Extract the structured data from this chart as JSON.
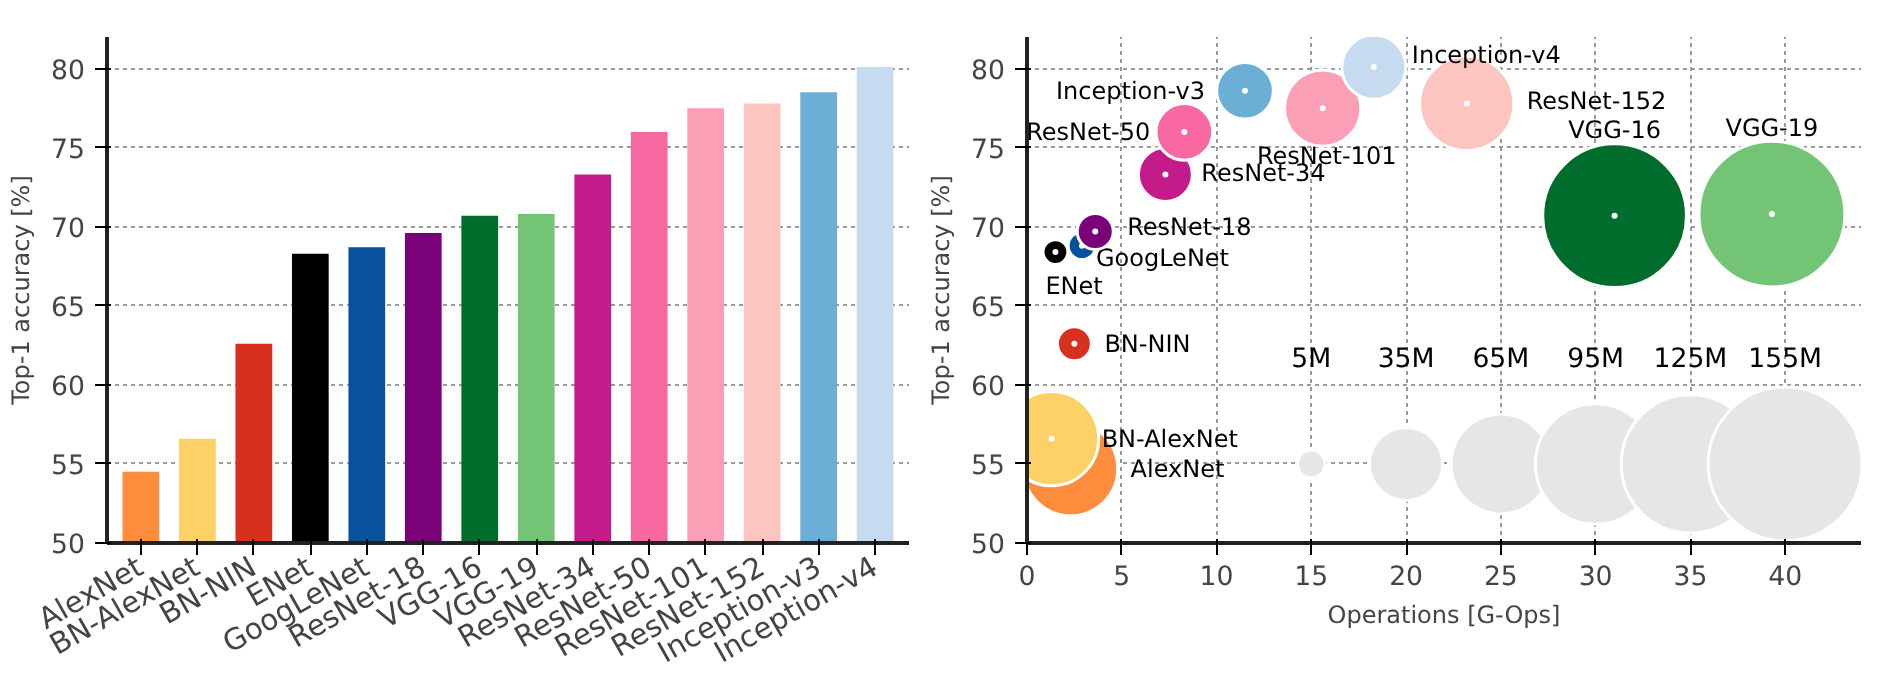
{
  "chart_data": [
    {
      "type": "bar",
      "ylabel": "Top-1 accuracy [%]",
      "categories": [
        "AlexNet",
        "BN-AlexNet",
        "BN-NIN",
        "ENet",
        "GoogLeNet",
        "ResNet-18",
        "VGG-16",
        "VGG-19",
        "ResNet-34",
        "ResNet-50",
        "ResNet-101",
        "ResNet-152",
        "Inception-v3",
        "Inception-v4"
      ],
      "values": [
        54.5,
        56.6,
        62.6,
        68.3,
        68.7,
        69.6,
        70.7,
        70.8,
        73.3,
        76.0,
        77.5,
        77.8,
        78.5,
        80.1
      ],
      "colors": [
        "#fd8d3c",
        "#fed166",
        "#d7301f",
        "#000000",
        "#08519c",
        "#7a0177",
        "#006d2c",
        "#74c476",
        "#c51b8a",
        "#f768a1",
        "#fa9fb5",
        "#fcc5c0",
        "#6baed6",
        "#c6dbef"
      ],
      "ylim": [
        50,
        82
      ],
      "yticks": [
        50,
        55,
        60,
        65,
        70,
        75,
        80
      ],
      "grid": "y"
    },
    {
      "type": "bubble",
      "xlabel": "Operations [G-Ops]",
      "ylabel": "Top-1 accuracy [%]",
      "xlim": [
        0,
        44
      ],
      "xticks": [
        0,
        5,
        10,
        15,
        20,
        25,
        30,
        35,
        40
      ],
      "ylim": [
        50,
        82
      ],
      "yticks": [
        50,
        55,
        60,
        65,
        70,
        75,
        80
      ],
      "grid": true,
      "size_legend": [
        {
          "value": 5,
          "label": "5M"
        },
        {
          "value": 35,
          "label": "35M"
        },
        {
          "value": 65,
          "label": "65M"
        },
        {
          "value": 95,
          "label": "95M"
        },
        {
          "value": 125,
          "label": "125M"
        },
        {
          "value": 155,
          "label": "155M"
        }
      ],
      "series": [
        {
          "name": "AlexNet",
          "color": "#fd8d3c",
          "x": [
            2.3
          ],
          "values": [
            54.7
          ],
          "sizes": [
            58
          ]
        },
        {
          "name": "BN-AlexNet",
          "color": "#fed166",
          "x": [
            1.3
          ],
          "values": [
            56.6
          ],
          "sizes": [
            58
          ]
        },
        {
          "name": "BN-NIN",
          "color": "#d7301f",
          "x": [
            2.5
          ],
          "values": [
            62.6
          ],
          "sizes": [
            7.5
          ]
        },
        {
          "name": "ENet",
          "color": "#000000",
          "x": [
            1.5
          ],
          "values": [
            68.4
          ],
          "sizes": [
            4
          ]
        },
        {
          "name": "GoogLeNet",
          "color": "#08519c",
          "x": [
            2.9
          ],
          "values": [
            68.8
          ],
          "sizes": [
            5
          ]
        },
        {
          "name": "ResNet-18",
          "color": "#7a0177",
          "x": [
            3.6
          ],
          "values": [
            69.7
          ],
          "sizes": [
            8.5
          ]
        },
        {
          "name": "VGG-16",
          "color": "#006d2c",
          "x": [
            31.0
          ],
          "values": [
            70.7
          ],
          "sizes": [
            135
          ]
        },
        {
          "name": "VGG-19",
          "color": "#74c476",
          "x": [
            39.3
          ],
          "values": [
            70.8
          ],
          "sizes": [
            139
          ]
        },
        {
          "name": "ResNet-34",
          "color": "#c51b8a",
          "x": [
            7.3
          ],
          "values": [
            73.3
          ],
          "sizes": [
            19
          ]
        },
        {
          "name": "ResNet-50",
          "color": "#f768a1",
          "x": [
            8.3
          ],
          "values": [
            76.0
          ],
          "sizes": [
            21
          ]
        },
        {
          "name": "ResNet-101",
          "color": "#fa9fb5",
          "x": [
            15.6
          ],
          "values": [
            77.5
          ],
          "sizes": [
            38
          ]
        },
        {
          "name": "ResNet-152",
          "color": "#fcc5c0",
          "x": [
            23.2
          ],
          "values": [
            77.8
          ],
          "sizes": [
            58
          ]
        },
        {
          "name": "Inception-v3",
          "color": "#6baed6",
          "x": [
            11.5
          ],
          "values": [
            78.6
          ],
          "sizes": [
            21
          ]
        },
        {
          "name": "Inception-v4",
          "color": "#c6dbef",
          "x": [
            18.3
          ],
          "values": [
            80.1
          ],
          "sizes": [
            27
          ]
        }
      ]
    }
  ]
}
